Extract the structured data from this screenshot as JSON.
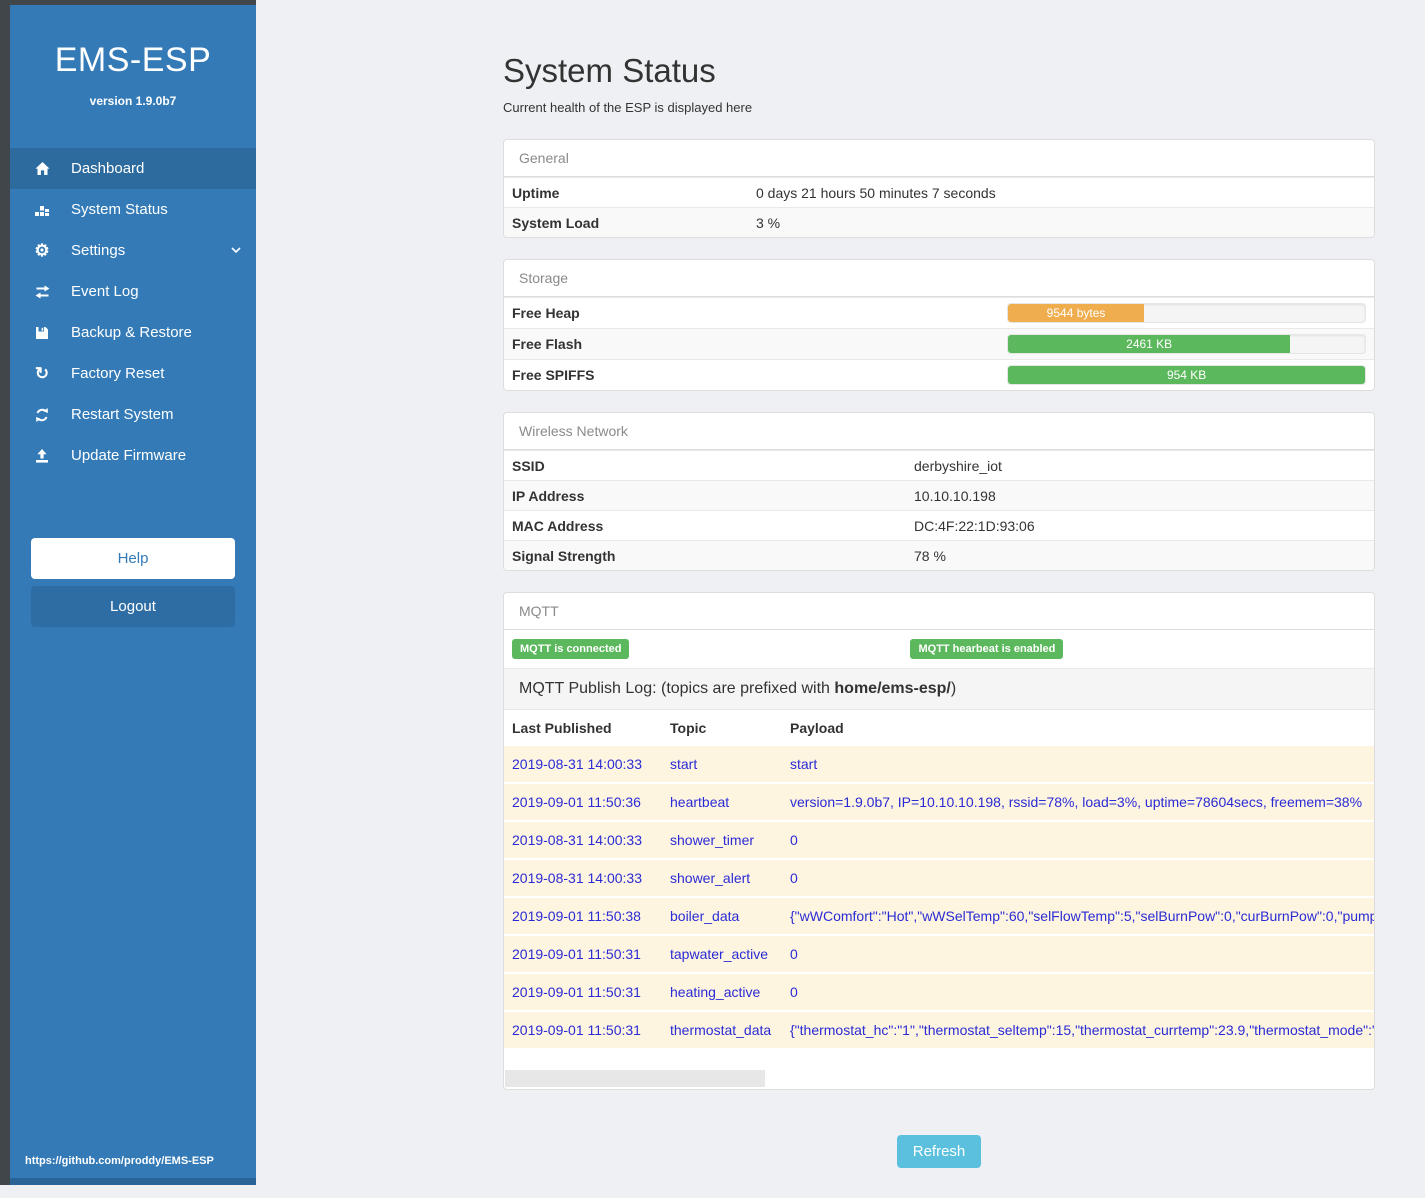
{
  "app": {
    "title": "EMS-ESP",
    "version": "version 1.9.0b7",
    "footer_link": "https://github.com/proddy/EMS-ESP"
  },
  "sidebar": {
    "items": [
      {
        "label": "Dashboard",
        "icon": "home-icon",
        "active": true
      },
      {
        "label": "System Status",
        "icon": "equalizer-icon",
        "active": false
      },
      {
        "label": "Settings",
        "icon": "gear-icon",
        "active": false,
        "has_chevron": true
      },
      {
        "label": "Event Log",
        "icon": "exchange-icon",
        "active": false
      },
      {
        "label": "Backup & Restore",
        "icon": "save-icon",
        "active": false
      },
      {
        "label": "Factory Reset",
        "icon": "undo-icon",
        "active": false
      },
      {
        "label": "Restart System",
        "icon": "refresh-icon",
        "active": false
      },
      {
        "label": "Update Firmware",
        "icon": "upload-icon",
        "active": false
      }
    ],
    "help_label": "Help",
    "logout_label": "Logout"
  },
  "page": {
    "title": "System Status",
    "subtitle": "Current health of the ESP is displayed here"
  },
  "panels": {
    "general": {
      "heading": "General",
      "rows": [
        {
          "label": "Uptime",
          "value": "0 days 21 hours 50 minutes 7 seconds"
        },
        {
          "label": "System Load",
          "value": "3 %"
        }
      ]
    },
    "storage": {
      "heading": "Storage",
      "rows": [
        {
          "label": "Free Heap",
          "value": "9544 bytes",
          "percent": 38,
          "color": "#f0ad4e"
        },
        {
          "label": "Free Flash",
          "value": "2461 KB",
          "percent": 79,
          "color": "#5cb85c"
        },
        {
          "label": "Free SPIFFS",
          "value": "954 KB",
          "percent": 100,
          "color": "#5cb85c"
        }
      ]
    },
    "wireless": {
      "heading": "Wireless Network",
      "rows": [
        {
          "label": "SSID",
          "value": "derbyshire_iot"
        },
        {
          "label": "IP Address",
          "value": "10.10.10.198"
        },
        {
          "label": "MAC Address",
          "value": "DC:4F:22:1D:93:06"
        },
        {
          "label": "Signal Strength",
          "value": "78 %"
        }
      ]
    },
    "mqtt": {
      "heading": "MQTT",
      "badges": [
        "MQTT is connected",
        "MQTT hearbeat is enabled"
      ],
      "publish_log_prefix": "MQTT Publish Log: (topics are prefixed with ",
      "publish_log_bold": "home/ems-esp/",
      "publish_log_suffix": ")",
      "table": {
        "headers": [
          "Last Published",
          "Topic",
          "Payload"
        ],
        "rows": [
          {
            "time": "2019-08-31 14:00:33",
            "topic": "start",
            "payload": "start"
          },
          {
            "time": "2019-09-01 11:50:36",
            "topic": "heartbeat",
            "payload": "version=1.9.0b7, IP=10.10.10.198, rssid=78%, load=3%, uptime=78604secs, freemem=38%"
          },
          {
            "time": "2019-08-31 14:00:33",
            "topic": "shower_timer",
            "payload": "0"
          },
          {
            "time": "2019-08-31 14:00:33",
            "topic": "shower_alert",
            "payload": "0"
          },
          {
            "time": "2019-09-01 11:50:38",
            "topic": "boiler_data",
            "payload": "{\"wWComfort\":\"Hot\",\"wWSelTemp\":60,\"selFlowTemp\":5,\"selBurnPow\":0,\"curBurnPow\":0,\"pump"
          },
          {
            "time": "2019-09-01 11:50:31",
            "topic": "tapwater_active",
            "payload": "0"
          },
          {
            "time": "2019-09-01 11:50:31",
            "topic": "heating_active",
            "payload": "0"
          },
          {
            "time": "2019-09-01 11:50:31",
            "topic": "thermostat_data",
            "payload": "{\"thermostat_hc\":\"1\",\"thermostat_seltemp\":15,\"thermostat_currtemp\":23.9,\"thermostat_mode\":\""
          }
        ]
      }
    }
  },
  "refresh_label": "Refresh",
  "colors": {
    "sidebar_blue": "#337ab7",
    "sidebar_active": "#2d6b9e",
    "logout_blue": "#2e6da4",
    "bottom_strip": "#2a6496",
    "badge_green": "#5cb85c",
    "bar_orange": "#f0ad4e",
    "bar_green": "#5cb85c",
    "refresh_blue": "#5bc0de",
    "log_text_blue": "#2b2bd5",
    "log_row_cream": "#fdf5e0"
  }
}
